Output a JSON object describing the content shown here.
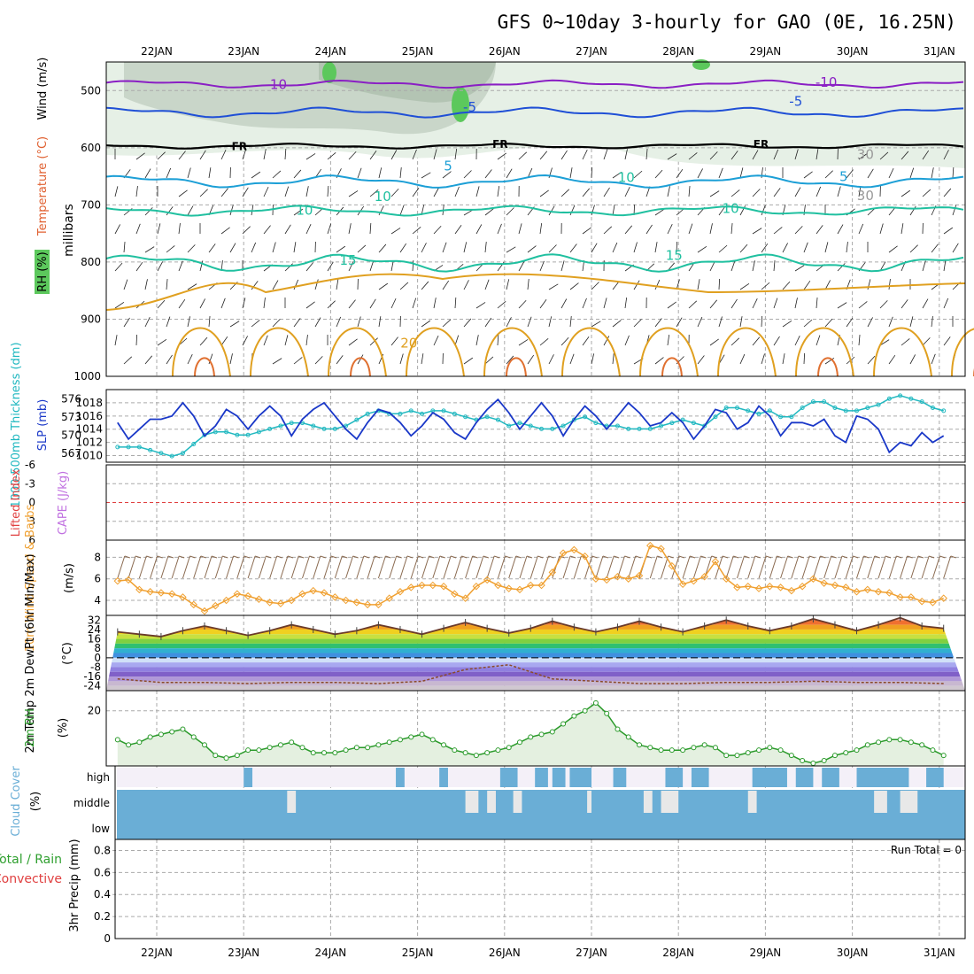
{
  "title": "GFS 0~10day 3-hourly for GAO (0E, 16.25N)",
  "dates": [
    "22JAN",
    "23JAN",
    "24JAN",
    "25JAN",
    "26JAN",
    "27JAN",
    "28JAN",
    "29JAN",
    "30JAN",
    "31JAN"
  ],
  "colors": {
    "grid": "#aaaaaa",
    "frame": "#000000",
    "wind_purple": "#8a1fc4",
    "wind_blue": "#1f4fd6",
    "temp_cyan": "#1c9fd6",
    "temp_green": "#20c0a0",
    "temp_orange": "#e0a020",
    "slp": "#1a38c8",
    "thickness": "#20b8c0",
    "wind10m": "#f0a030",
    "rh": "#2a9a2a",
    "cloud": "#6aaed6"
  },
  "chart_data": [
    {
      "type": "contour",
      "panel": "upper-air",
      "ylabel_parts": [
        "Wind (m/s)",
        "Temperature (°C)",
        "RH (%)"
      ],
      "y_axis_label": "millibars",
      "y_ticks": [
        "500",
        "600",
        "700",
        "800",
        "900",
        "1000"
      ],
      "ylim": [
        1000,
        450
      ],
      "contour_labels": [
        {
          "text": "10",
          "pressure": 497,
          "day": 1.4
        },
        {
          "text": "-10",
          "pressure": 493,
          "day": 7.7
        },
        {
          "text": "-5",
          "pressure": 537,
          "day": 3.6
        },
        {
          "text": "-5",
          "pressure": 527,
          "day": 7.35
        },
        {
          "text": "FR",
          "pressure": 604,
          "day": 0.95
        },
        {
          "text": "FR",
          "pressure": 600,
          "day": 3.95
        },
        {
          "text": "FR",
          "pressure": 600,
          "day": 6.95
        },
        {
          "text": "5",
          "pressure": 640,
          "day": 3.35
        },
        {
          "text": "5",
          "pressure": 658,
          "day": 7.9
        },
        {
          "text": "10",
          "pressure": 717,
          "day": 1.7
        },
        {
          "text": "10",
          "pressure": 714,
          "day": 6.6
        },
        {
          "text": "15",
          "pressure": 805,
          "day": 2.2
        },
        {
          "text": "15",
          "pressure": 796,
          "day": 5.95
        },
        {
          "text": "20",
          "pressure": 950,
          "day": 2.9
        },
        {
          "text": "30",
          "pressure": 620,
          "day": 8.15
        },
        {
          "text": "30",
          "pressure": 692,
          "day": 8.15
        },
        {
          "text": "10",
          "pressure": 693,
          "day": 2.6
        },
        {
          "text": "10",
          "pressure": 660,
          "day": 5.4
        }
      ]
    },
    {
      "type": "line",
      "panel": "pressure-thickness",
      "left_label": "1000-500mb Thickness (dm)",
      "right_label": "SLP (mb)",
      "left_ticks": [
        "576",
        "573",
        "570",
        "567"
      ],
      "right_ticks": [
        "1018",
        "1016",
        "1014",
        "1012",
        "1010"
      ],
      "series": [
        {
          "name": "SLP",
          "x": [
            0,
            0.125,
            0.25,
            0.375,
            0.5,
            0.625,
            0.75,
            0.875,
            1,
            1.125,
            1.25,
            1.375,
            1.5,
            1.625,
            1.75,
            1.875,
            2,
            2.125,
            2.25,
            2.375,
            2.5,
            2.625,
            2.75,
            2.875,
            3,
            3.125,
            3.25,
            3.375,
            3.5,
            3.625,
            3.75,
            3.875,
            4,
            4.125,
            4.25,
            4.375,
            4.5,
            4.625,
            4.75,
            4.875,
            5,
            5.125,
            5.25,
            5.375,
            5.5,
            5.625,
            5.75,
            5.875,
            6,
            6.125,
            6.25,
            6.375,
            6.5,
            6.625,
            6.75,
            6.875,
            7,
            7.125,
            7.25,
            7.375,
            7.5,
            7.625,
            7.75,
            7.875,
            8,
            8.125,
            8.25,
            8.375,
            8.5,
            8.625,
            8.75,
            8.875,
            9,
            9.125,
            9.25,
            9.375,
            9.5
          ],
          "values": [
            1015,
            1012.5,
            1014,
            1015.5,
            1015.5,
            1016,
            1018,
            1016,
            1013,
            1014.5,
            1017,
            1016,
            1014,
            1016,
            1017.5,
            1016,
            1013,
            1015.5,
            1017,
            1018,
            1016,
            1014,
            1012.5,
            1015,
            1017,
            1016.5,
            1015,
            1013,
            1014.5,
            1016.5,
            1015.5,
            1013.5,
            1012.5,
            1015,
            1017,
            1018.5,
            1016.5,
            1014,
            1016,
            1018,
            1016,
            1013,
            1015.5,
            1017.5,
            1016,
            1014,
            1016,
            1018,
            1016.5,
            1014.5,
            1015,
            1016.5,
            1015,
            1012.5,
            1014.5,
            1017,
            1016.5,
            1014,
            1015,
            1017.5,
            1016,
            1013,
            1015,
            1015,
            1014.5,
            1015.5,
            1013,
            1012,
            1016,
            1015.5,
            1014,
            1010.5,
            1012,
            1011.5,
            1013.5,
            1012,
            1013
          ]
        },
        {
          "name": "Thickness",
          "x": [
            0,
            0.125,
            0.25,
            0.375,
            0.5,
            0.625,
            0.75,
            0.875,
            1,
            1.125,
            1.25,
            1.375,
            1.5,
            1.625,
            1.75,
            1.875,
            2,
            2.125,
            2.25,
            2.375,
            2.5,
            2.625,
            2.75,
            2.875,
            3,
            3.125,
            3.25,
            3.375,
            3.5,
            3.625,
            3.75,
            3.875,
            4,
            4.125,
            4.25,
            4.375,
            4.5,
            4.625,
            4.75,
            4.875,
            5,
            5.125,
            5.25,
            5.375,
            5.5,
            5.625,
            5.75,
            5.875,
            6,
            6.125,
            6.25,
            6.375,
            6.5,
            6.625,
            6.75,
            6.875,
            7,
            7.125,
            7.25,
            7.375,
            7.5,
            7.625,
            7.75,
            7.875,
            8,
            8.125,
            8.25,
            8.375,
            8.5,
            8.625,
            8.75,
            8.875,
            9,
            9.125,
            9.25,
            9.375,
            9.5
          ],
          "values": [
            568,
            568,
            568,
            567.5,
            567,
            566.5,
            567,
            568.5,
            570,
            570.5,
            570.5,
            570,
            570,
            570.5,
            571,
            571.5,
            572,
            572,
            571.5,
            571,
            571,
            571.5,
            572.5,
            573.5,
            574,
            573.5,
            573.5,
            574,
            573.5,
            574,
            574,
            573.5,
            573,
            572.5,
            573,
            572.5,
            571.5,
            572,
            571.5,
            571,
            571,
            571.5,
            572.5,
            573,
            572,
            571.5,
            571.5,
            571,
            571,
            571,
            571.5,
            572,
            572.5,
            572,
            571.5,
            573,
            574.5,
            574.5,
            574,
            573.5,
            574,
            573,
            573,
            574.5,
            575.5,
            575.5,
            574.5,
            574,
            574,
            574.5,
            575,
            576,
            576.5,
            576,
            575.5,
            574.5,
            574
          ]
        }
      ]
    },
    {
      "type": "line",
      "panel": "stability",
      "left_label": "Lifted Index",
      "right_label": "CAPE (J/kg)",
      "left_ticks": [
        "-6",
        "-3",
        "0",
        "3",
        "6"
      ],
      "ylim": [
        6,
        -6
      ]
    },
    {
      "type": "line",
      "panel": "wind10m",
      "ylabel": "10m Wind Speed & Barbs",
      "right_label": "(m/s)",
      "y_ticks": [
        "8",
        "6",
        "4"
      ],
      "series": [
        {
          "name": "Speed",
          "x": [
            0,
            0.125,
            0.25,
            0.375,
            0.5,
            0.625,
            0.75,
            0.875,
            1,
            1.125,
            1.25,
            1.375,
            1.5,
            1.625,
            1.75,
            1.875,
            2,
            2.125,
            2.25,
            2.375,
            2.5,
            2.625,
            2.75,
            2.875,
            3,
            3.125,
            3.25,
            3.375,
            3.5,
            3.625,
            3.75,
            3.875,
            4,
            4.125,
            4.25,
            4.375,
            4.5,
            4.625,
            4.75,
            4.875,
            5,
            5.125,
            5.25,
            5.375,
            5.5,
            5.625,
            5.75,
            5.875,
            6,
            6.125,
            6.25,
            6.375,
            6.5,
            6.625,
            6.75,
            6.875,
            7,
            7.125,
            7.25,
            7.375,
            7.5,
            7.625,
            7.75,
            7.875,
            8,
            8.125,
            8.25,
            8.375,
            8.5,
            8.625,
            8.75,
            8.875,
            9,
            9.125,
            9.25,
            9.375,
            9.5
          ],
          "values": [
            5.8,
            5.9,
            5,
            4.8,
            4.7,
            4.6,
            4.3,
            3.6,
            3,
            3.5,
            4,
            4.6,
            4.4,
            4.1,
            3.8,
            3.7,
            4,
            4.6,
            4.9,
            4.7,
            4.3,
            4,
            3.8,
            3.6,
            3.6,
            4.2,
            4.8,
            5.2,
            5.4,
            5.4,
            5.3,
            4.6,
            4.2,
            5.3,
            5.9,
            5.4,
            5.1,
            5,
            5.4,
            5.4,
            6.6,
            8.4,
            8.7,
            8.1,
            6,
            5.9,
            6.2,
            6,
            6.3,
            9.1,
            8.8,
            7.2,
            5.5,
            5.8,
            6.2,
            7.6,
            6,
            5.2,
            5.3,
            5.1,
            5.3,
            5.2,
            4.9,
            5.3,
            6,
            5.6,
            5.4,
            5.2,
            4.8,
            5,
            4.8,
            4.7,
            4.3,
            4.3,
            3.9,
            3.8,
            4.2
          ]
        }
      ]
    },
    {
      "type": "area",
      "panel": "temperature2m",
      "ylabel": "2m Temp 2m DewPt (6hr Min/Max)",
      "right_label": "(°C)",
      "y_ticks": [
        "32",
        "24",
        "16",
        "8",
        "0",
        "-8",
        "-16",
        "-24"
      ],
      "series": [
        {
          "name": "2m Temp",
          "x": [
            0,
            0.25,
            0.5,
            0.75,
            1,
            1.25,
            1.5,
            1.75,
            2,
            2.25,
            2.5,
            2.75,
            3,
            3.25,
            3.5,
            3.75,
            4,
            4.25,
            4.5,
            4.75,
            5,
            5.25,
            5.5,
            5.75,
            6,
            6.25,
            6.5,
            6.75,
            7,
            7.25,
            7.5,
            7.75,
            8,
            8.25,
            8.5,
            8.75,
            9,
            9.25,
            9.5
          ],
          "values": [
            22,
            20,
            18,
            23,
            27,
            23,
            19,
            23,
            28,
            24,
            20,
            23,
            28,
            24,
            20,
            25,
            30,
            25,
            21,
            25,
            31,
            26,
            22,
            26,
            31,
            26,
            22,
            27,
            32,
            27,
            23,
            27,
            33,
            28,
            23,
            28,
            34,
            27,
            25
          ]
        },
        {
          "name": "2m DewPt",
          "x": [
            0,
            0.5,
            1,
            1.5,
            2,
            2.5,
            3,
            3.5,
            4,
            4.5,
            5,
            5.5,
            6,
            6.5,
            7,
            7.5,
            8,
            8.5,
            9,
            9.5
          ],
          "values": [
            -18,
            -21,
            -21,
            -22,
            -21,
            -21,
            -22,
            -20,
            -10,
            -6,
            -18,
            -20,
            -22,
            -22,
            -21,
            -21,
            -20,
            -21,
            -21,
            -22
          ]
        }
      ]
    },
    {
      "type": "line",
      "panel": "rh2m",
      "ylabel": "2m RH",
      "right_label": "(%)",
      "y_ticks": [
        "20"
      ],
      "series": [
        {
          "name": "2m RH",
          "x": [
            0,
            0.125,
            0.25,
            0.375,
            0.5,
            0.625,
            0.75,
            0.875,
            1,
            1.125,
            1.25,
            1.375,
            1.5,
            1.625,
            1.75,
            1.875,
            2,
            2.125,
            2.25,
            2.375,
            2.5,
            2.625,
            2.75,
            2.875,
            3,
            3.125,
            3.25,
            3.375,
            3.5,
            3.625,
            3.75,
            3.875,
            4,
            4.125,
            4.25,
            4.375,
            4.5,
            4.625,
            4.75,
            4.875,
            5,
            5.125,
            5.25,
            5.375,
            5.5,
            5.625,
            5.75,
            5.875,
            6,
            6.125,
            6.25,
            6.375,
            6.5,
            6.625,
            6.75,
            6.875,
            7,
            7.125,
            7.25,
            7.375,
            7.5,
            7.625,
            7.75,
            7.875,
            8,
            8.125,
            8.25,
            8.375,
            8.5,
            8.625,
            8.75,
            8.875,
            9,
            9.125,
            9.25,
            9.375,
            9.5
          ],
          "values": [
            9,
            7,
            8,
            10,
            11,
            12,
            13,
            10,
            7,
            3,
            2,
            3,
            5,
            5,
            6,
            7,
            8,
            6,
            4,
            4,
            4,
            5,
            6,
            6,
            7,
            8,
            9,
            10,
            11,
            9,
            7,
            5,
            4,
            3,
            4,
            5,
            6,
            8,
            10,
            11,
            12,
            15,
            18,
            20,
            23,
            19,
            13,
            10,
            7,
            6,
            5,
            5,
            5,
            6,
            7,
            6,
            3,
            3,
            4,
            5,
            6,
            5,
            3,
            1,
            0,
            1,
            3,
            4,
            5,
            7,
            8,
            9,
            9,
            8,
            7,
            5,
            3
          ]
        }
      ]
    },
    {
      "type": "heatmap",
      "panel": "cloud-cover",
      "ylabel": "Cloud Cover",
      "right_label": "(%)",
      "rows": [
        "high",
        "middle",
        "low"
      ],
      "high_cover_days": [
        [
          1.45,
          1.55
        ],
        [
          3.2,
          3.3
        ],
        [
          3.7,
          3.8
        ],
        [
          4.4,
          4.6
        ],
        [
          4.8,
          4.95
        ],
        [
          5.0,
          5.15
        ],
        [
          5.2,
          5.45
        ],
        [
          5.7,
          5.85
        ],
        [
          6.3,
          6.5
        ],
        [
          6.6,
          6.8
        ],
        [
          7.3,
          7.7
        ],
        [
          7.8,
          8.0
        ],
        [
          8.1,
          8.3
        ],
        [
          8.5,
          9.1
        ],
        [
          9.3,
          9.5
        ]
      ],
      "middle_gap_days": [
        [
          1.95,
          2.05
        ],
        [
          4.0,
          4.15
        ],
        [
          4.25,
          4.35
        ],
        [
          4.55,
          4.65
        ],
        [
          5.4,
          5.45
        ],
        [
          6.05,
          6.15
        ],
        [
          6.25,
          6.45
        ],
        [
          7.25,
          7.35
        ],
        [
          8.7,
          8.85
        ],
        [
          9.0,
          9.2
        ]
      ]
    },
    {
      "type": "bar",
      "panel": "precipitation",
      "ylabel_parts": [
        "3hr Precip (mm)",
        "Total / Rain",
        "Convective"
      ],
      "y_ticks": [
        "0.8",
        "0.6",
        "0.4",
        "0.2",
        "0"
      ],
      "run_total": "Run Total = 0",
      "values": []
    }
  ]
}
